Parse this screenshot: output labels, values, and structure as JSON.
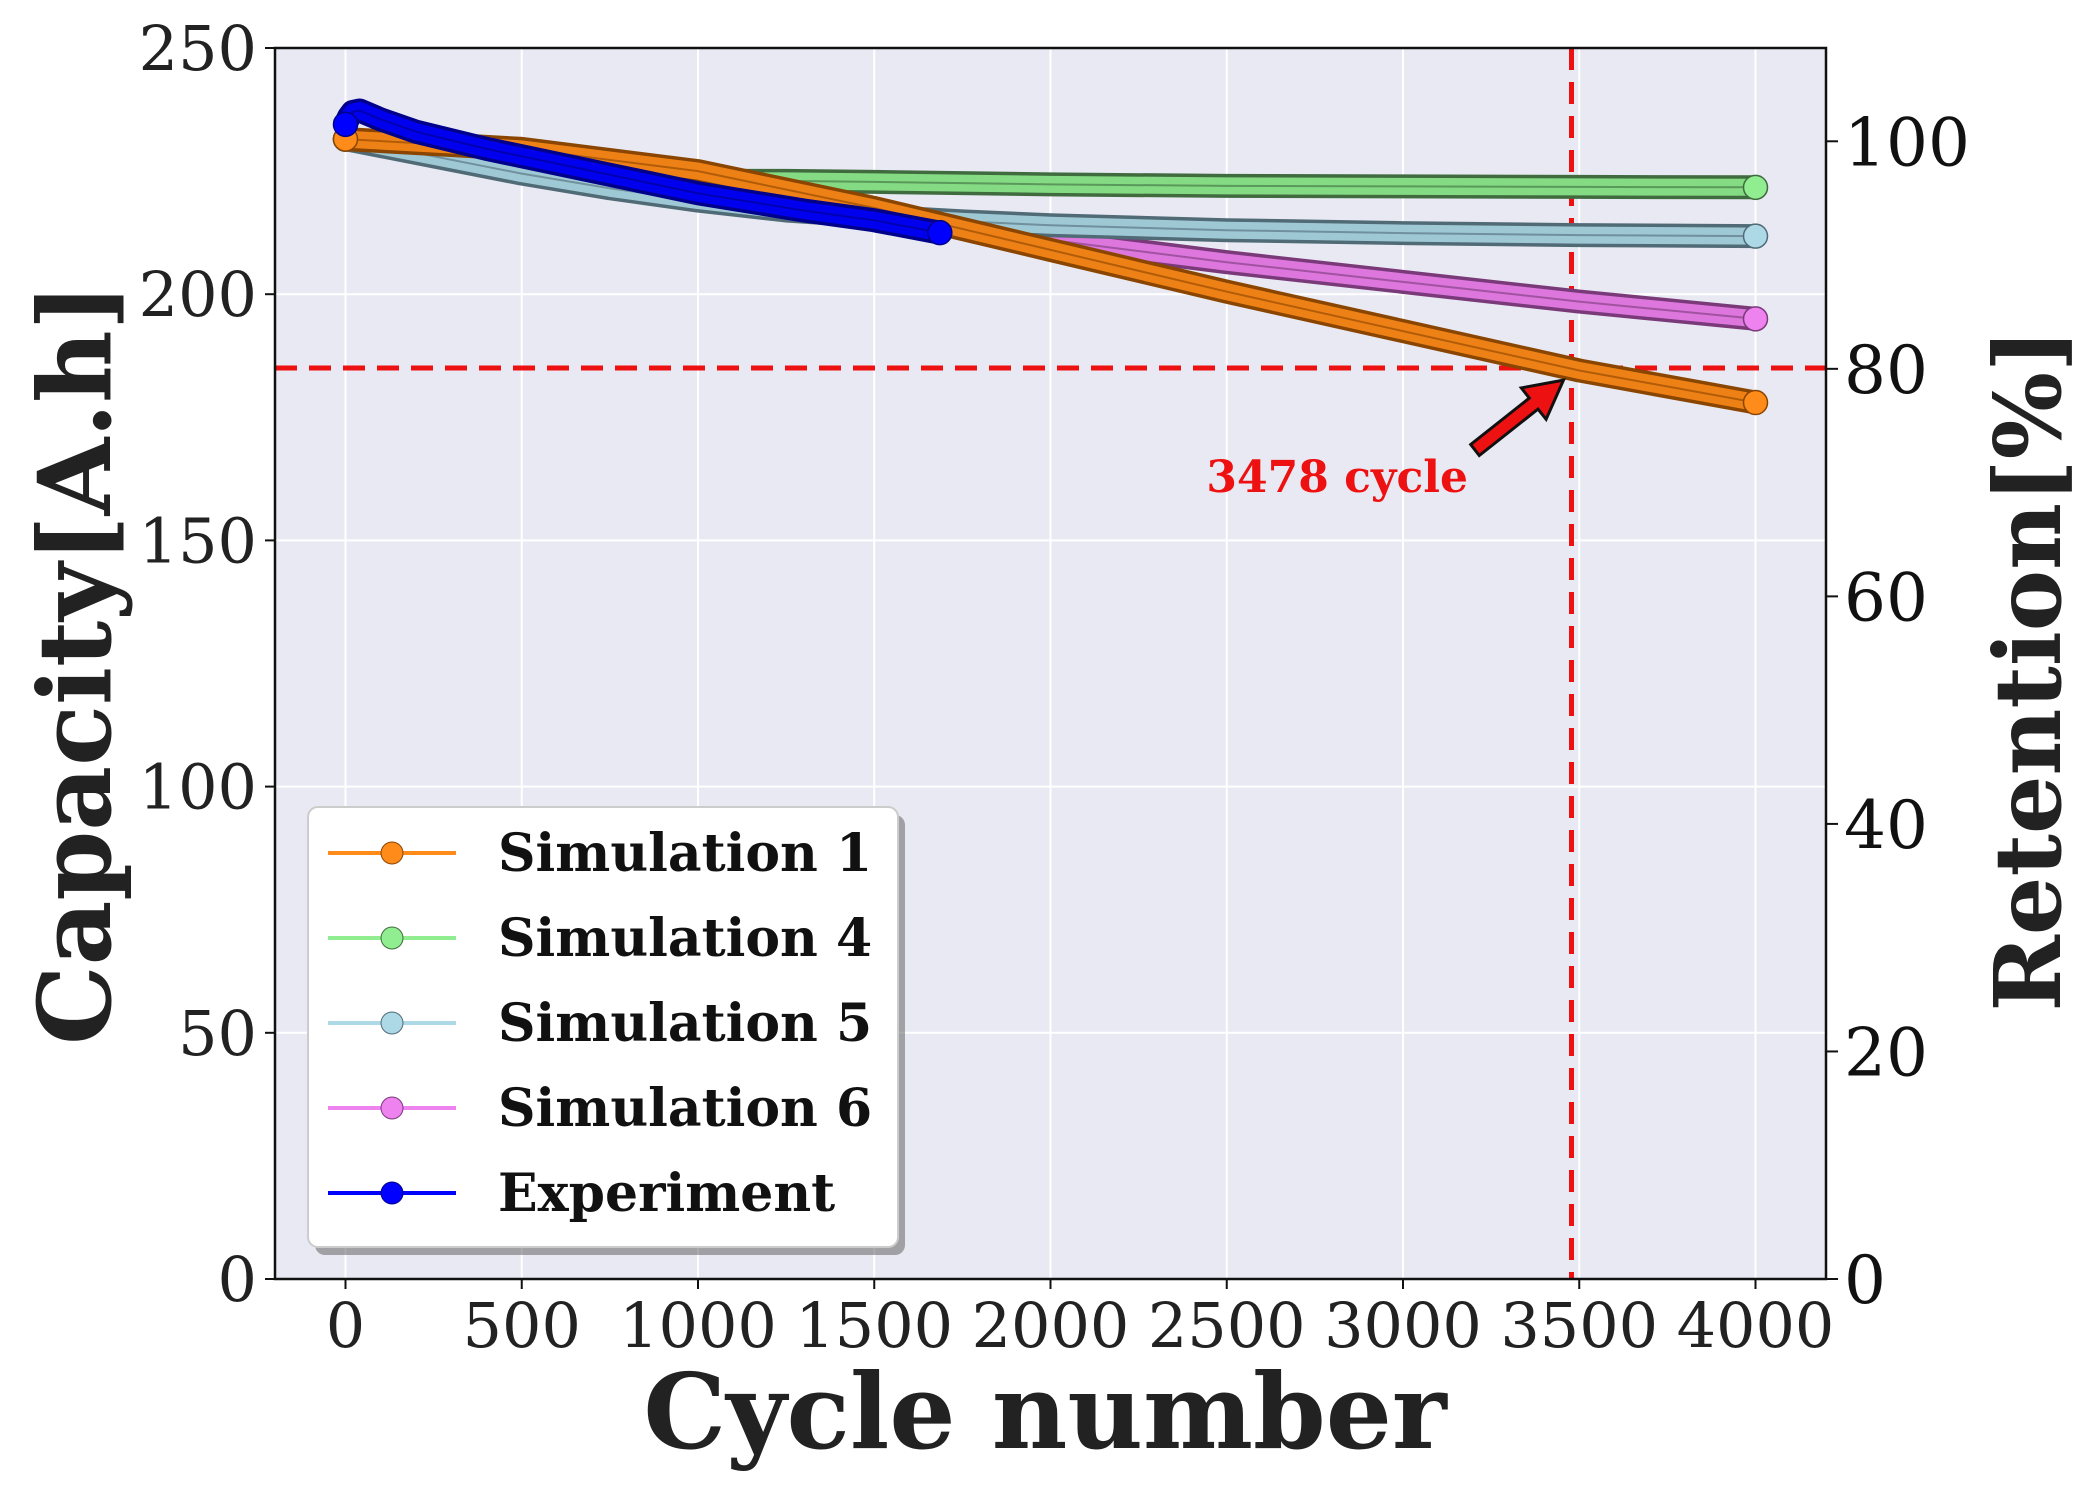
{
  "chart_data": {
    "type": "line",
    "xlabel": "Cycle number",
    "ylabel": "Capacity[A.h]",
    "y2label": "Retention[%]",
    "xlim": [
      -200,
      4200
    ],
    "ylim": [
      0,
      250
    ],
    "y2lim": [
      0,
      108.2
    ],
    "xticks": [
      "0",
      "500",
      "1000",
      "1500",
      "2000",
      "2500",
      "3000",
      "3500",
      "4000"
    ],
    "yticks": [
      "0",
      "50",
      "100",
      "150",
      "200",
      "250"
    ],
    "y2ticks": [
      "0",
      "20",
      "40",
      "60",
      "80",
      "100"
    ],
    "grid": true,
    "legend_position": "bottom-left",
    "series": [
      {
        "name": "Simulation 1",
        "color": "#ff8c1a",
        "edge": "#8a4500",
        "x": [
          0,
          500,
          1000,
          1500,
          2000,
          2500,
          3000,
          3500,
          4000
        ],
        "values": [
          231.5,
          229.5,
          225.0,
          217.5,
          209.0,
          200.5,
          192.5,
          184.5,
          178.0
        ]
      },
      {
        "name": "Simulation 4",
        "color": "#90ee90",
        "edge": "#3f6b3f",
        "x": [
          0,
          250,
          500,
          750,
          1000,
          1250,
          1500,
          2000,
          2500,
          3000,
          3500,
          4000
        ],
        "values": [
          231.5,
          229.0,
          226.5,
          224.5,
          223.0,
          223.0,
          222.8,
          222.3,
          222.0,
          221.9,
          221.8,
          221.7
        ]
      },
      {
        "name": "Simulation 5",
        "color": "#add8e6",
        "edge": "#506a76",
        "x": [
          0,
          250,
          500,
          750,
          1000,
          1250,
          1500,
          1750,
          2000,
          2500,
          3000,
          3500,
          4000
        ],
        "values": [
          231.5,
          228.0,
          224.5,
          221.5,
          219.0,
          217.0,
          215.8,
          214.8,
          214.0,
          213.0,
          212.4,
          212.0,
          211.8
        ]
      },
      {
        "name": "Simulation 6",
        "color": "#ee82ee",
        "edge": "#7a3a7a",
        "x": [
          0,
          500,
          1000,
          1500,
          2000,
          2500,
          3000,
          3500,
          4000
        ],
        "values": [
          231.5,
          227.5,
          222.5,
          216.5,
          211.0,
          206.5,
          202.5,
          198.5,
          195.0
        ]
      },
      {
        "name": "Experiment",
        "color": "#0000ff",
        "edge": "#00008b",
        "x": [
          0,
          10,
          20,
          40,
          100,
          200,
          400,
          700,
          1000,
          1300,
          1500,
          1686
        ],
        "values": [
          234.5,
          236.0,
          237.0,
          237.3,
          235.5,
          233.0,
          229.5,
          225.0,
          220.5,
          217.0,
          215.0,
          212.5
        ]
      }
    ],
    "reference_lines": {
      "horizontal_y": 185,
      "vertical_x": 3478,
      "color": "#ee1111"
    },
    "annotation": {
      "text": "3478 cycle",
      "target_x": 3478,
      "target_y": 185,
      "text_x": 2890,
      "text_y": 162
    }
  }
}
